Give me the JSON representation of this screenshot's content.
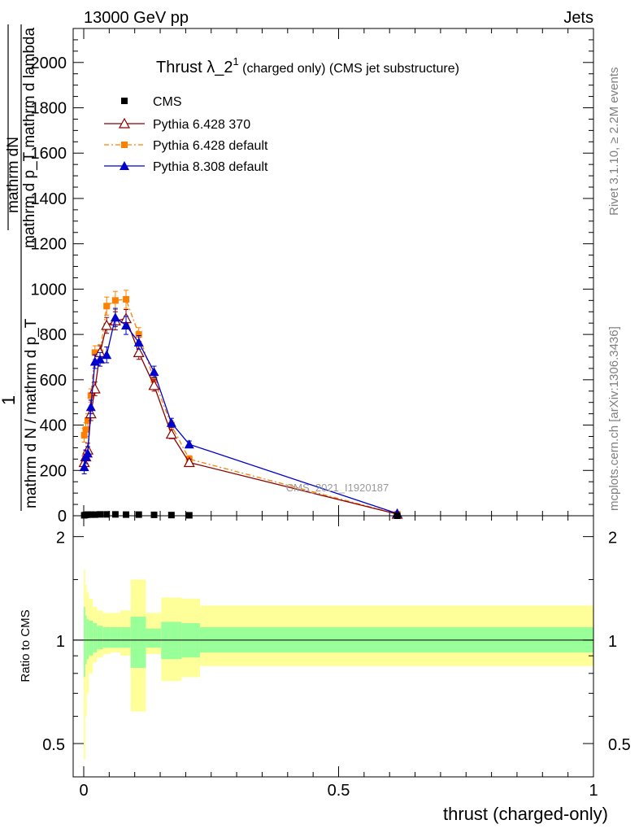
{
  "header": {
    "energy_label": "13000 GeV pp",
    "process_label": "Jets"
  },
  "side_labels": {
    "rivet": "Rivet 3.1.10, ≥ 2.2M events",
    "mcplots": "mcplots.cern.ch [arXiv:1306.3436]"
  },
  "watermark": "CMS_2021_I1920187",
  "chart_data": [
    {
      "type": "line",
      "title_main": "Thrust λ_2",
      "title_sup": "1",
      "title_rest": " (charged only) (CMS jet substructure)",
      "ylabel_top_1": "mathrm dN",
      "ylabel_top_2": "mathrm d p_T mathrm d lambda",
      "ylabel_num": "1",
      "ylabel_bottom": "mathrm d N / mathrm d p_T",
      "xlim": [
        0,
        1
      ],
      "ylim": [
        0,
        2150
      ],
      "yticks": [
        0,
        200,
        400,
        600,
        800,
        1000,
        1200,
        1400,
        1600,
        1800,
        2000
      ],
      "ytick_labels": [
        "0",
        "200",
        "400",
        "600",
        "800",
        "1000",
        "1200",
        "1400",
        "1600",
        "1800",
        "2000"
      ],
      "legend_position": "top-left",
      "legend": [
        {
          "key": "cms",
          "label": "CMS"
        },
        {
          "key": "p6_370",
          "label": "Pythia 6.428 370"
        },
        {
          "key": "p6_def",
          "label": "Pythia 6.428 default"
        },
        {
          "key": "p8_def",
          "label": "Pythia 8.308 default"
        }
      ],
      "series": [
        {
          "key": "cms",
          "color": "#000000",
          "marker": "square",
          "x": [
            0.001,
            0.004,
            0.008,
            0.014,
            0.022,
            0.032,
            0.045,
            0.062,
            0.083,
            0.108,
            0.138,
            0.172,
            0.207,
            0.615
          ],
          "y": [
            2,
            4,
            5,
            5,
            5,
            6,
            6,
            6,
            5,
            5,
            4,
            3,
            2,
            0
          ]
        },
        {
          "key": "p6_370",
          "color": "#8b0000",
          "marker": "triangle-open",
          "x": [
            0.001,
            0.004,
            0.008,
            0.014,
            0.022,
            0.032,
            0.045,
            0.062,
            0.083,
            0.108,
            0.138,
            0.172,
            0.207,
            0.615
          ],
          "y": [
            235,
            260,
            290,
            450,
            560,
            720,
            840,
            860,
            870,
            720,
            575,
            360,
            235,
            7
          ],
          "err": [
            30,
            30,
            30,
            30,
            30,
            30,
            35,
            40,
            40,
            30,
            25,
            20,
            15,
            3
          ]
        },
        {
          "key": "p6_def",
          "color": "#ff7f00",
          "marker": "square",
          "x": [
            0.001,
            0.004,
            0.008,
            0.014,
            0.022,
            0.032,
            0.045,
            0.062,
            0.083,
            0.108,
            0.138,
            0.172,
            0.207,
            0.615
          ],
          "y": [
            355,
            380,
            420,
            530,
            720,
            720,
            925,
            950,
            955,
            800,
            600,
            400,
            250,
            7
          ],
          "err": [
            30,
            30,
            30,
            30,
            30,
            35,
            40,
            40,
            40,
            30,
            25,
            20,
            15,
            3
          ]
        },
        {
          "key": "p8_def",
          "color": "#0000cc",
          "marker": "triangle",
          "x": [
            0.001,
            0.004,
            0.008,
            0.014,
            0.022,
            0.032,
            0.045,
            0.062,
            0.083,
            0.108,
            0.138,
            0.172,
            0.207,
            0.615
          ],
          "y": [
            215,
            260,
            275,
            480,
            680,
            690,
            710,
            875,
            840,
            765,
            635,
            410,
            315,
            10
          ],
          "err": [
            30,
            30,
            30,
            30,
            30,
            30,
            35,
            40,
            40,
            30,
            25,
            20,
            15,
            3
          ]
        }
      ]
    },
    {
      "type": "area",
      "ylabel": "Ratio to CMS",
      "xlabel": "thrust (charged-only)",
      "xlim": [
        0,
        1
      ],
      "ylim": [
        0.4,
        2.3
      ],
      "log_y": true,
      "yticks": [
        0.5,
        1,
        2
      ],
      "ytick_labels": [
        "0.5",
        "1",
        "2"
      ],
      "xticks": [
        0,
        0.5,
        1
      ],
      "xtick_labels": [
        "0",
        "0.5",
        "1"
      ],
      "band_colors": {
        "inner": "#99ff99",
        "outer": "#ffff99"
      },
      "bins": [
        {
          "x0": 0.0,
          "x1": 0.003,
          "outer": [
            0.45,
            1.6
          ],
          "inner": [
            0.78,
            1.25
          ]
        },
        {
          "x0": 0.003,
          "x1": 0.006,
          "outer": [
            0.6,
            1.45
          ],
          "inner": [
            0.85,
            1.18
          ]
        },
        {
          "x0": 0.006,
          "x1": 0.01,
          "outer": [
            0.7,
            1.38
          ],
          "inner": [
            0.88,
            1.15
          ]
        },
        {
          "x0": 0.01,
          "x1": 0.018,
          "outer": [
            0.8,
            1.32
          ],
          "inner": [
            0.9,
            1.14
          ]
        },
        {
          "x0": 0.018,
          "x1": 0.026,
          "outer": [
            0.86,
            1.25
          ],
          "inner": [
            0.92,
            1.12
          ]
        },
        {
          "x0": 0.026,
          "x1": 0.038,
          "outer": [
            0.89,
            1.22
          ],
          "inner": [
            0.94,
            1.1
          ]
        },
        {
          "x0": 0.038,
          "x1": 0.052,
          "outer": [
            0.91,
            1.2
          ],
          "inner": [
            0.95,
            1.09
          ]
        },
        {
          "x0": 0.052,
          "x1": 0.072,
          "outer": [
            0.92,
            1.2
          ],
          "inner": [
            0.95,
            1.09
          ]
        },
        {
          "x0": 0.072,
          "x1": 0.092,
          "outer": [
            0.9,
            1.22
          ],
          "inner": [
            0.95,
            1.09
          ]
        },
        {
          "x0": 0.092,
          "x1": 0.122,
          "outer": [
            0.62,
            1.5
          ],
          "inner": [
            0.83,
            1.17
          ]
        },
        {
          "x0": 0.122,
          "x1": 0.152,
          "outer": [
            0.91,
            1.2
          ],
          "inner": [
            0.95,
            1.08
          ]
        },
        {
          "x0": 0.152,
          "x1": 0.192,
          "outer": [
            0.76,
            1.33
          ],
          "inner": [
            0.88,
            1.13
          ]
        },
        {
          "x0": 0.192,
          "x1": 0.228,
          "outer": [
            0.78,
            1.32
          ],
          "inner": [
            0.89,
            1.12
          ]
        },
        {
          "x0": 0.228,
          "x1": 1.0,
          "outer": [
            0.84,
            1.26
          ],
          "inner": [
            0.92,
            1.09
          ]
        }
      ]
    }
  ]
}
